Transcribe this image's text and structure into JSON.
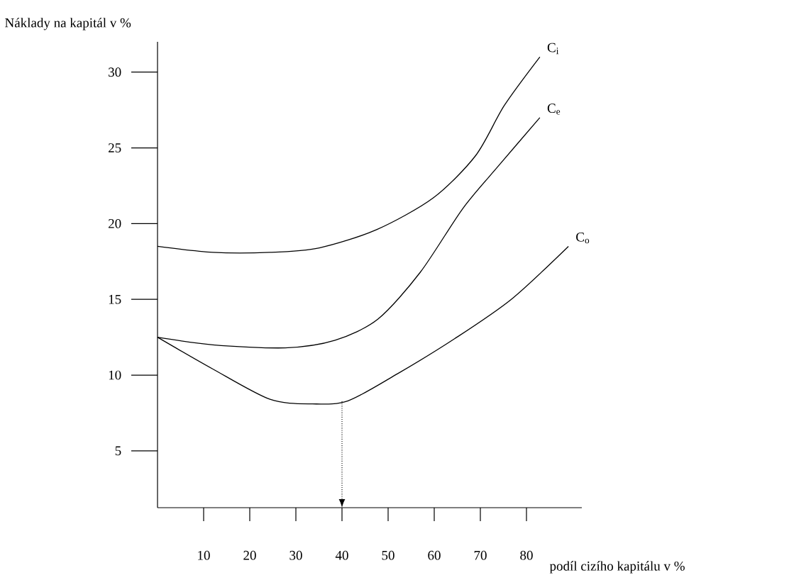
{
  "chart_data": {
    "type": "line",
    "xlabel": "podíl cizího kapitálu v %",
    "ylabel": "Náklady na kapitál v %",
    "xlim": [
      0,
      92
    ],
    "ylim": [
      1.25,
      32
    ],
    "xticks": [
      10,
      20,
      30,
      40,
      50,
      60,
      70,
      80
    ],
    "yticks": [
      5,
      10,
      15,
      20,
      25,
      30
    ],
    "series": [
      {
        "name": "C$_{i}$",
        "color": "#000000",
        "x": [
          0,
          12,
          24.4,
          35.1,
          47.5,
          59.8,
          69,
          75.2,
          82.9
        ],
        "values": [
          18.5,
          18.1,
          18.1,
          18.4,
          19.6,
          21.7,
          24.5,
          27.8,
          31
        ]
      },
      {
        "name": "C$_{e}$",
        "color": "#000000",
        "x": [
          0,
          12,
          27.7,
          38.5,
          47.8,
          57,
          66.2,
          73.9,
          82.9
        ],
        "values": [
          12.5,
          12,
          11.8,
          12.3,
          13.7,
          16.8,
          21,
          23.8,
          27
        ]
      },
      {
        "name": "C$_{o}$",
        "color": "#000000",
        "x": [
          0,
          12,
          24.4,
          33.6,
          41.3,
          52.1,
          64.4,
          76.7,
          89.1
        ],
        "values": [
          12.5,
          10.4,
          8.4,
          8.1,
          8.3,
          10.1,
          12.4,
          15,
          18.5
        ]
      }
    ],
    "ref_lines": [
      {
        "axis": "x",
        "value": 40,
        "line_style": "dotted"
      }
    ]
  }
}
